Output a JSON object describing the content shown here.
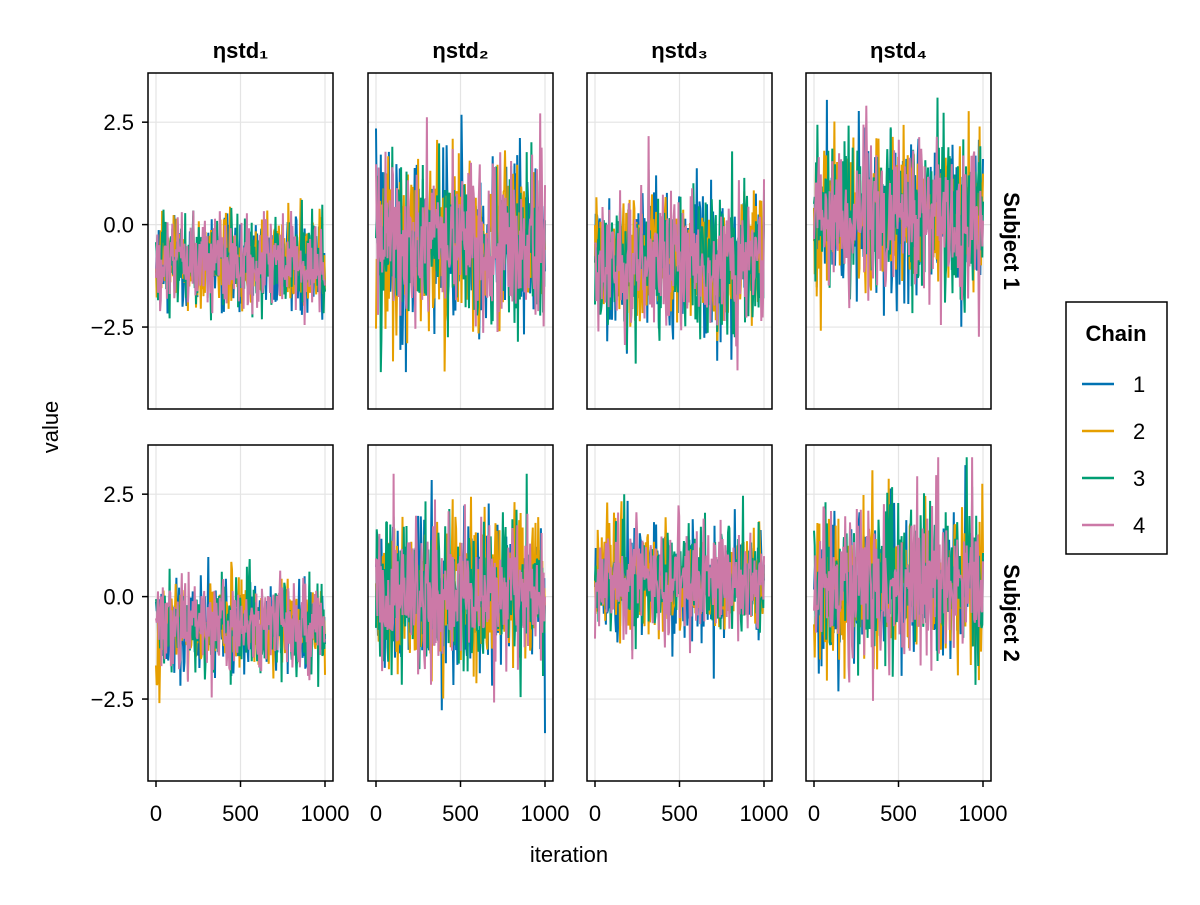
{
  "chart_data": {
    "type": "line",
    "xlabel": "iteration",
    "ylabel": "value",
    "xlim": [
      0,
      1000
    ],
    "ylim": [
      -4.5,
      3.7
    ],
    "x_ticks": [
      0,
      500,
      1000
    ],
    "y_ticks": [
      2.5,
      0.0,
      -2.5
    ],
    "x_tick_labels": [
      "0",
      "500",
      "1000"
    ],
    "y_tick_labels": [
      "2.5",
      "0.0",
      "−2.5"
    ],
    "grid": true,
    "columns": [
      "ηstd₁",
      "ηstd₂",
      "ηstd₃",
      "ηstd₄"
    ],
    "rows": [
      "Subject 1",
      "Subject 2"
    ],
    "legend": {
      "title": "Chain",
      "placement": "right",
      "entries": [
        {
          "label": "1",
          "color": "#0072B2"
        },
        {
          "label": "2",
          "color": "#E69F00"
        },
        {
          "label": "3",
          "color": "#009E73"
        },
        {
          "label": "4",
          "color": "#CC79A7"
        }
      ]
    },
    "iterations": 1000,
    "panels": [
      {
        "row": "Subject 1",
        "column": "ηstd₁",
        "mean": -0.9,
        "sd": 0.55,
        "min": -2.9,
        "max": 0.8
      },
      {
        "row": "Subject 1",
        "column": "ηstd₂",
        "mean": -0.4,
        "sd": 1.05,
        "min": -3.6,
        "max": 3.3
      },
      {
        "row": "Subject 1",
        "column": "ηstd₃",
        "mean": -0.9,
        "sd": 0.85,
        "min": -4.1,
        "max": 2.4
      },
      {
        "row": "Subject 1",
        "column": "ηstd₄",
        "mean": 0.2,
        "sd": 0.95,
        "min": -3.1,
        "max": 3.1
      },
      {
        "row": "Subject 2",
        "column": "ηstd₁",
        "mean": -0.7,
        "sd": 0.55,
        "min": -2.6,
        "max": 1.0
      },
      {
        "row": "Subject 2",
        "column": "ηstd₂",
        "mean": 0.1,
        "sd": 0.95,
        "min": -3.6,
        "max": 3.0
      },
      {
        "row": "Subject 2",
        "column": "ηstd₃",
        "mean": 0.4,
        "sd": 0.65,
        "min": -2.0,
        "max": 2.5
      },
      {
        "row": "Subject 2",
        "column": "ηstd₄",
        "mean": 0.3,
        "sd": 0.95,
        "min": -3.3,
        "max": 3.4
      }
    ]
  }
}
